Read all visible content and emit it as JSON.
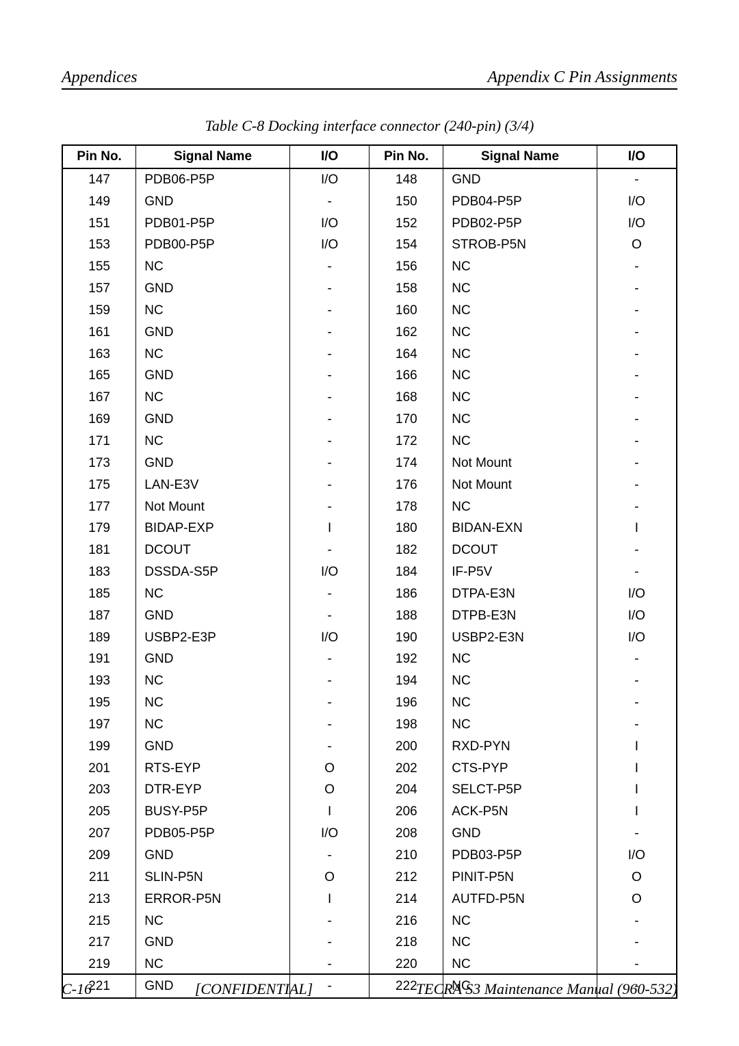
{
  "header": {
    "left": "Appendices",
    "right": "Appendix C  Pin Assignments"
  },
  "caption": "Table  C-8   Docking interface connector (240-pin) (3/4)",
  "columns": [
    "Pin No.",
    "Signal Name",
    "I/O",
    "Pin No.",
    "Signal Name",
    "I/O"
  ],
  "col_widths_pct": [
    12,
    25,
    13,
    12,
    25,
    13
  ],
  "border_color": "#000000",
  "background_color": "#ffffff",
  "header_fontsize_pt": 19,
  "body_fontsize_pt": 19,
  "rows": [
    [
      "147",
      "PDB06-P5P",
      "I/O",
      "148",
      "GND",
      "-"
    ],
    [
      "149",
      "GND",
      "-",
      "150",
      "PDB04-P5P",
      "I/O"
    ],
    [
      "151",
      "PDB01-P5P",
      "I/O",
      "152",
      "PDB02-P5P",
      "I/O"
    ],
    [
      "153",
      "PDB00-P5P",
      "I/O",
      "154",
      "STROB-P5N",
      "O"
    ],
    [
      "155",
      "NC",
      "-",
      "156",
      "NC",
      "-"
    ],
    [
      "157",
      "GND",
      "-",
      "158",
      "NC",
      "-"
    ],
    [
      "159",
      "NC",
      "-",
      "160",
      "NC",
      "-"
    ],
    [
      "161",
      "GND",
      "-",
      "162",
      "NC",
      "-"
    ],
    [
      "163",
      "NC",
      "-",
      "164",
      "NC",
      "-"
    ],
    [
      "165",
      "GND",
      "-",
      "166",
      "NC",
      "-"
    ],
    [
      "167",
      "NC",
      "-",
      "168",
      "NC",
      "-"
    ],
    [
      "169",
      "GND",
      "-",
      "170",
      "NC",
      "-"
    ],
    [
      "171",
      "NC",
      "-",
      "172",
      "NC",
      "-"
    ],
    [
      "173",
      "GND",
      "-",
      "174",
      "Not Mount",
      "-"
    ],
    [
      "175",
      "LAN-E3V",
      "-",
      "176",
      "Not Mount",
      "-"
    ],
    [
      "177",
      "Not Mount",
      "-",
      "178",
      "NC",
      "-"
    ],
    [
      "179",
      "BIDAP-EXP",
      "I",
      "180",
      "BIDAN-EXN",
      "I"
    ],
    [
      "181",
      "DCOUT",
      "-",
      "182",
      "DCOUT",
      "-"
    ],
    [
      "183",
      "DSSDA-S5P",
      "I/O",
      "184",
      "IF-P5V",
      "-"
    ],
    [
      "185",
      "NC",
      "-",
      "186",
      "DTPA-E3N",
      "I/O"
    ],
    [
      "187",
      "GND",
      "-",
      "188",
      "DTPB-E3N",
      "I/O"
    ],
    [
      "189",
      "USBP2-E3P",
      "I/O",
      "190",
      "USBP2-E3N",
      "I/O"
    ],
    [
      "191",
      "GND",
      "-",
      "192",
      "NC",
      "-"
    ],
    [
      "193",
      "NC",
      "-",
      "194",
      "NC",
      "-"
    ],
    [
      "195",
      "NC",
      "-",
      "196",
      "NC",
      "-"
    ],
    [
      "197",
      "NC",
      "-",
      "198",
      "NC",
      "-"
    ],
    [
      "199",
      "GND",
      "-",
      "200",
      "RXD-PYN",
      "I"
    ],
    [
      "201",
      "RTS-EYP",
      "O",
      "202",
      "CTS-PYP",
      "I"
    ],
    [
      "203",
      "DTR-EYP",
      "O",
      "204",
      "SELCT-P5P",
      "I"
    ],
    [
      "205",
      "BUSY-P5P",
      "I",
      "206",
      "ACK-P5N",
      "I"
    ],
    [
      "207",
      "PDB05-P5P",
      "I/O",
      "208",
      "GND",
      "-"
    ],
    [
      "209",
      "GND",
      "-",
      "210",
      "PDB03-P5P",
      "I/O"
    ],
    [
      "211",
      "SLIN-P5N",
      "O",
      "212",
      "PINIT-P5N",
      "O"
    ],
    [
      "213",
      "ERROR-P5N",
      "I",
      "214",
      "AUTFD-P5N",
      "O"
    ],
    [
      "215",
      "NC",
      "-",
      "216",
      "NC",
      "-"
    ],
    [
      "217",
      "GND",
      "-",
      "218",
      "NC",
      "-"
    ],
    [
      "219",
      "NC",
      "-",
      "220",
      "NC",
      "-"
    ],
    [
      "221",
      "GND",
      "-",
      "222",
      "NC",
      "-"
    ]
  ],
  "footer": {
    "left": "C-16",
    "center": "[CONFIDENTIAL]",
    "right": "TECRA S3  Maintenance Manual (960-532)"
  }
}
